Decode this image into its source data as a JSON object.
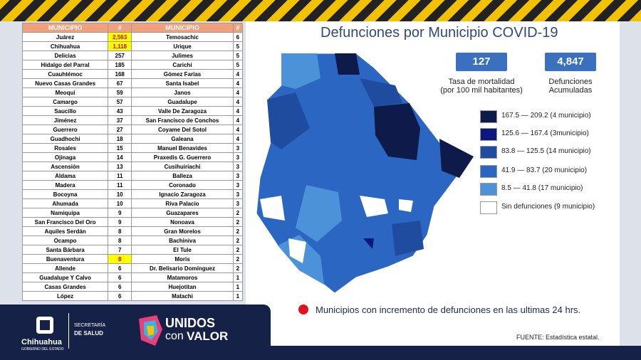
{
  "header": {
    "title": "Defunciones por Municipio COVID-19"
  },
  "table": {
    "columns": [
      "MUNICIPIO",
      "#",
      "MUNICIPIO",
      "#"
    ],
    "highlight_color": "#ffff00",
    "highlighted_rows": [
      0,
      1,
      24
    ],
    "rows": [
      [
        "Juárez",
        "2,563",
        "Temosachic",
        6
      ],
      [
        "Chihuahua",
        "1,118",
        "Urique",
        5
      ],
      [
        "Delicias",
        257,
        "Julimes",
        5
      ],
      [
        "Hidalgo del Parral",
        185,
        "Carichi",
        5
      ],
      [
        "Cuauhtémoc",
        168,
        "Gómez Farías",
        4
      ],
      [
        "Nuevo Casas Grandes",
        67,
        "Santa Isabel",
        4
      ],
      [
        "Meoqui",
        59,
        "Janos",
        4
      ],
      [
        "Camargo",
        57,
        "Guadalupe",
        4
      ],
      [
        "Saucillo",
        43,
        "Valle De Zaragoza",
        4
      ],
      [
        "Jiménez",
        37,
        "San Francisco de Conchos",
        4
      ],
      [
        "Guerrero",
        27,
        "Coyame Del Sotol",
        4
      ],
      [
        "Guadhochi",
        18,
        "Galeana",
        4
      ],
      [
        "Rosales",
        15,
        "Manuel Benavides",
        3
      ],
      [
        "Ojinaga",
        14,
        "Praxedis G. Guerrero",
        3
      ],
      [
        "Ascensión",
        13,
        "Cusihuiriachi",
        3
      ],
      [
        "Aldama",
        11,
        "Balleza",
        3
      ],
      [
        "Madera",
        11,
        "Coronado",
        3
      ],
      [
        "Bocoyna",
        10,
        "Ignacio Zaragoza",
        3
      ],
      [
        "Ahumada",
        10,
        "Riva Palacio",
        3
      ],
      [
        "Namiquipa",
        9,
        "Guazapares",
        2
      ],
      [
        "San Francisco Del Oro",
        9,
        "Nonoava",
        2
      ],
      [
        "Aquiles Serdán",
        8,
        "Gran Morelos",
        2
      ],
      [
        "Ocampo",
        8,
        "Bachiniva",
        2
      ],
      [
        "Santa Bárbara",
        7,
        "El Tule",
        2
      ],
      [
        "Buenaventura",
        8,
        "Moris",
        2
      ],
      [
        "Allende",
        6,
        "Dr. Belisario Domínguez",
        2
      ],
      [
        "Guadalupe Y Calvo",
        6,
        "Matamoros",
        1
      ],
      [
        "Casas Grandes",
        6,
        "Huejotitan",
        1
      ],
      [
        "López",
        6,
        "Matachi",
        1
      ]
    ]
  },
  "stats": [
    {
      "value": 127,
      "label": "Tasa de mortalidad\n(por 100 mil habitantes)"
    },
    {
      "value": "4,847",
      "label": "Defunciones\nAcumuladas"
    }
  ],
  "legend": [
    {
      "label": "167.5 — 209.2 (4 municipio)",
      "color": "#0d1a4a"
    },
    {
      "label": "125.6 — 167.4 (3municipio)",
      "color": "#0a1880"
    },
    {
      "label": "83.8 — 125.5 (14 municipio)",
      "color": "#1f4c9e"
    },
    {
      "label": "41.9 — 83.7 (20 municipio)",
      "color": "#2b66c2"
    },
    {
      "label": "8.5 — 41.8 (17 municipio)",
      "color": "#4c92d8"
    },
    {
      "label": "Sin defunciones (9 municipio)",
      "color": "#ffffff"
    }
  ],
  "note": "Municipios con incremento de defunciones en las ultimas 24 hrs.",
  "source": "FUENTE:  Estadística estatal.",
  "logos": {
    "state": "Chihuahua",
    "state_sub": "GOBIERNO DEL ESTADO",
    "dept1": "SECRETARÍA",
    "dept2": "DE SALUD",
    "brand1": "UNIDOS",
    "brand2": "con",
    "brand3": "VALOR"
  }
}
